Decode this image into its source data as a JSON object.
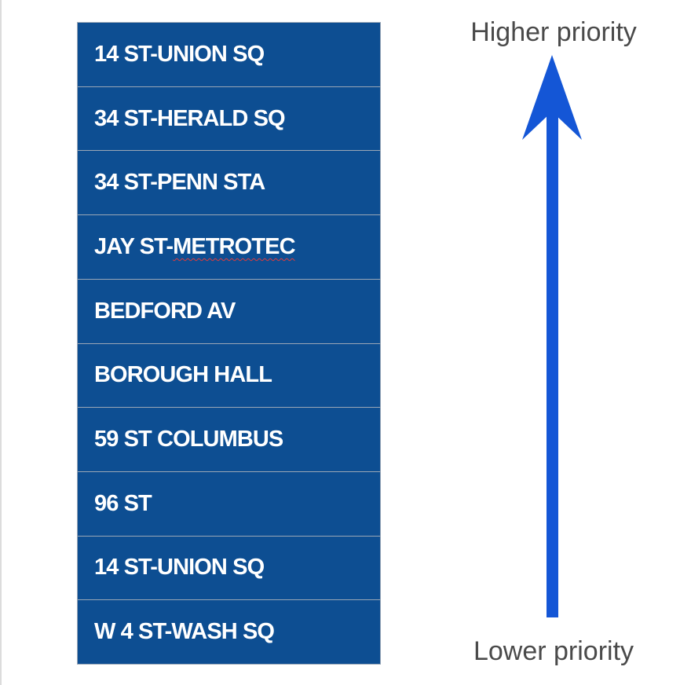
{
  "stations": [
    {
      "label": "14 ST-UNION SQ"
    },
    {
      "label": "34 ST-HERALD SQ"
    },
    {
      "label": "34 ST-PENN STA"
    },
    {
      "label": "JAY ST-",
      "label_flagged": "METROTEC"
    },
    {
      "label": "BEDFORD AV"
    },
    {
      "label": "BOROUGH HALL"
    },
    {
      "label": "59 ST COLUMBUS"
    },
    {
      "label": "96 ST"
    },
    {
      "label": "14 ST-UNION SQ"
    },
    {
      "label": "W 4 ST-WASH SQ"
    }
  ],
  "priority": {
    "high_label": "Higher priority",
    "low_label": "Lower priority",
    "direction": "up"
  },
  "colors": {
    "list_background": "#0d4e92",
    "row_divider": "#9aa7b6",
    "row_text": "#ffffff",
    "arrow": "#1456d6",
    "label_text": "#4a4a4a"
  }
}
